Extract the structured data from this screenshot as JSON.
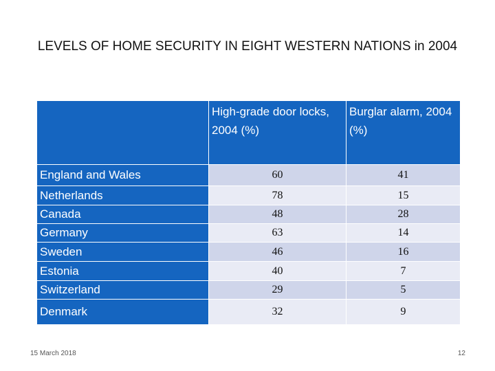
{
  "title": "LEVELS OF HOME SECURITY IN EIGHT WESTERN NATIONS in 2004",
  "table": {
    "headers": [
      "",
      "High-grade door locks, 2004 (%)",
      "Burglar alarm, 2004 (%)"
    ],
    "rows": [
      {
        "country": "England and Wales",
        "locks": "60",
        "alarm": "41"
      },
      {
        "country": "Netherlands",
        "locks": "78",
        "alarm": "15"
      },
      {
        "country": "Canada",
        "locks": "48",
        "alarm": "28"
      },
      {
        "country": "Germany",
        "locks": "63",
        "alarm": "14"
      },
      {
        "country": "Sweden",
        "locks": "46",
        "alarm": "16"
      },
      {
        "country": "Estonia",
        "locks": "40",
        "alarm": "7"
      },
      {
        "country": "Switzerland",
        "locks": "29",
        "alarm": "5"
      },
      {
        "country": "Denmark",
        "locks": "32",
        "alarm": "9"
      }
    ]
  },
  "footer": {
    "date": "15 March 2018",
    "page": "12"
  },
  "colors": {
    "header_blue": "#1565c0",
    "row_dark": "#cfd5ea",
    "row_light": "#e9ebf5"
  }
}
